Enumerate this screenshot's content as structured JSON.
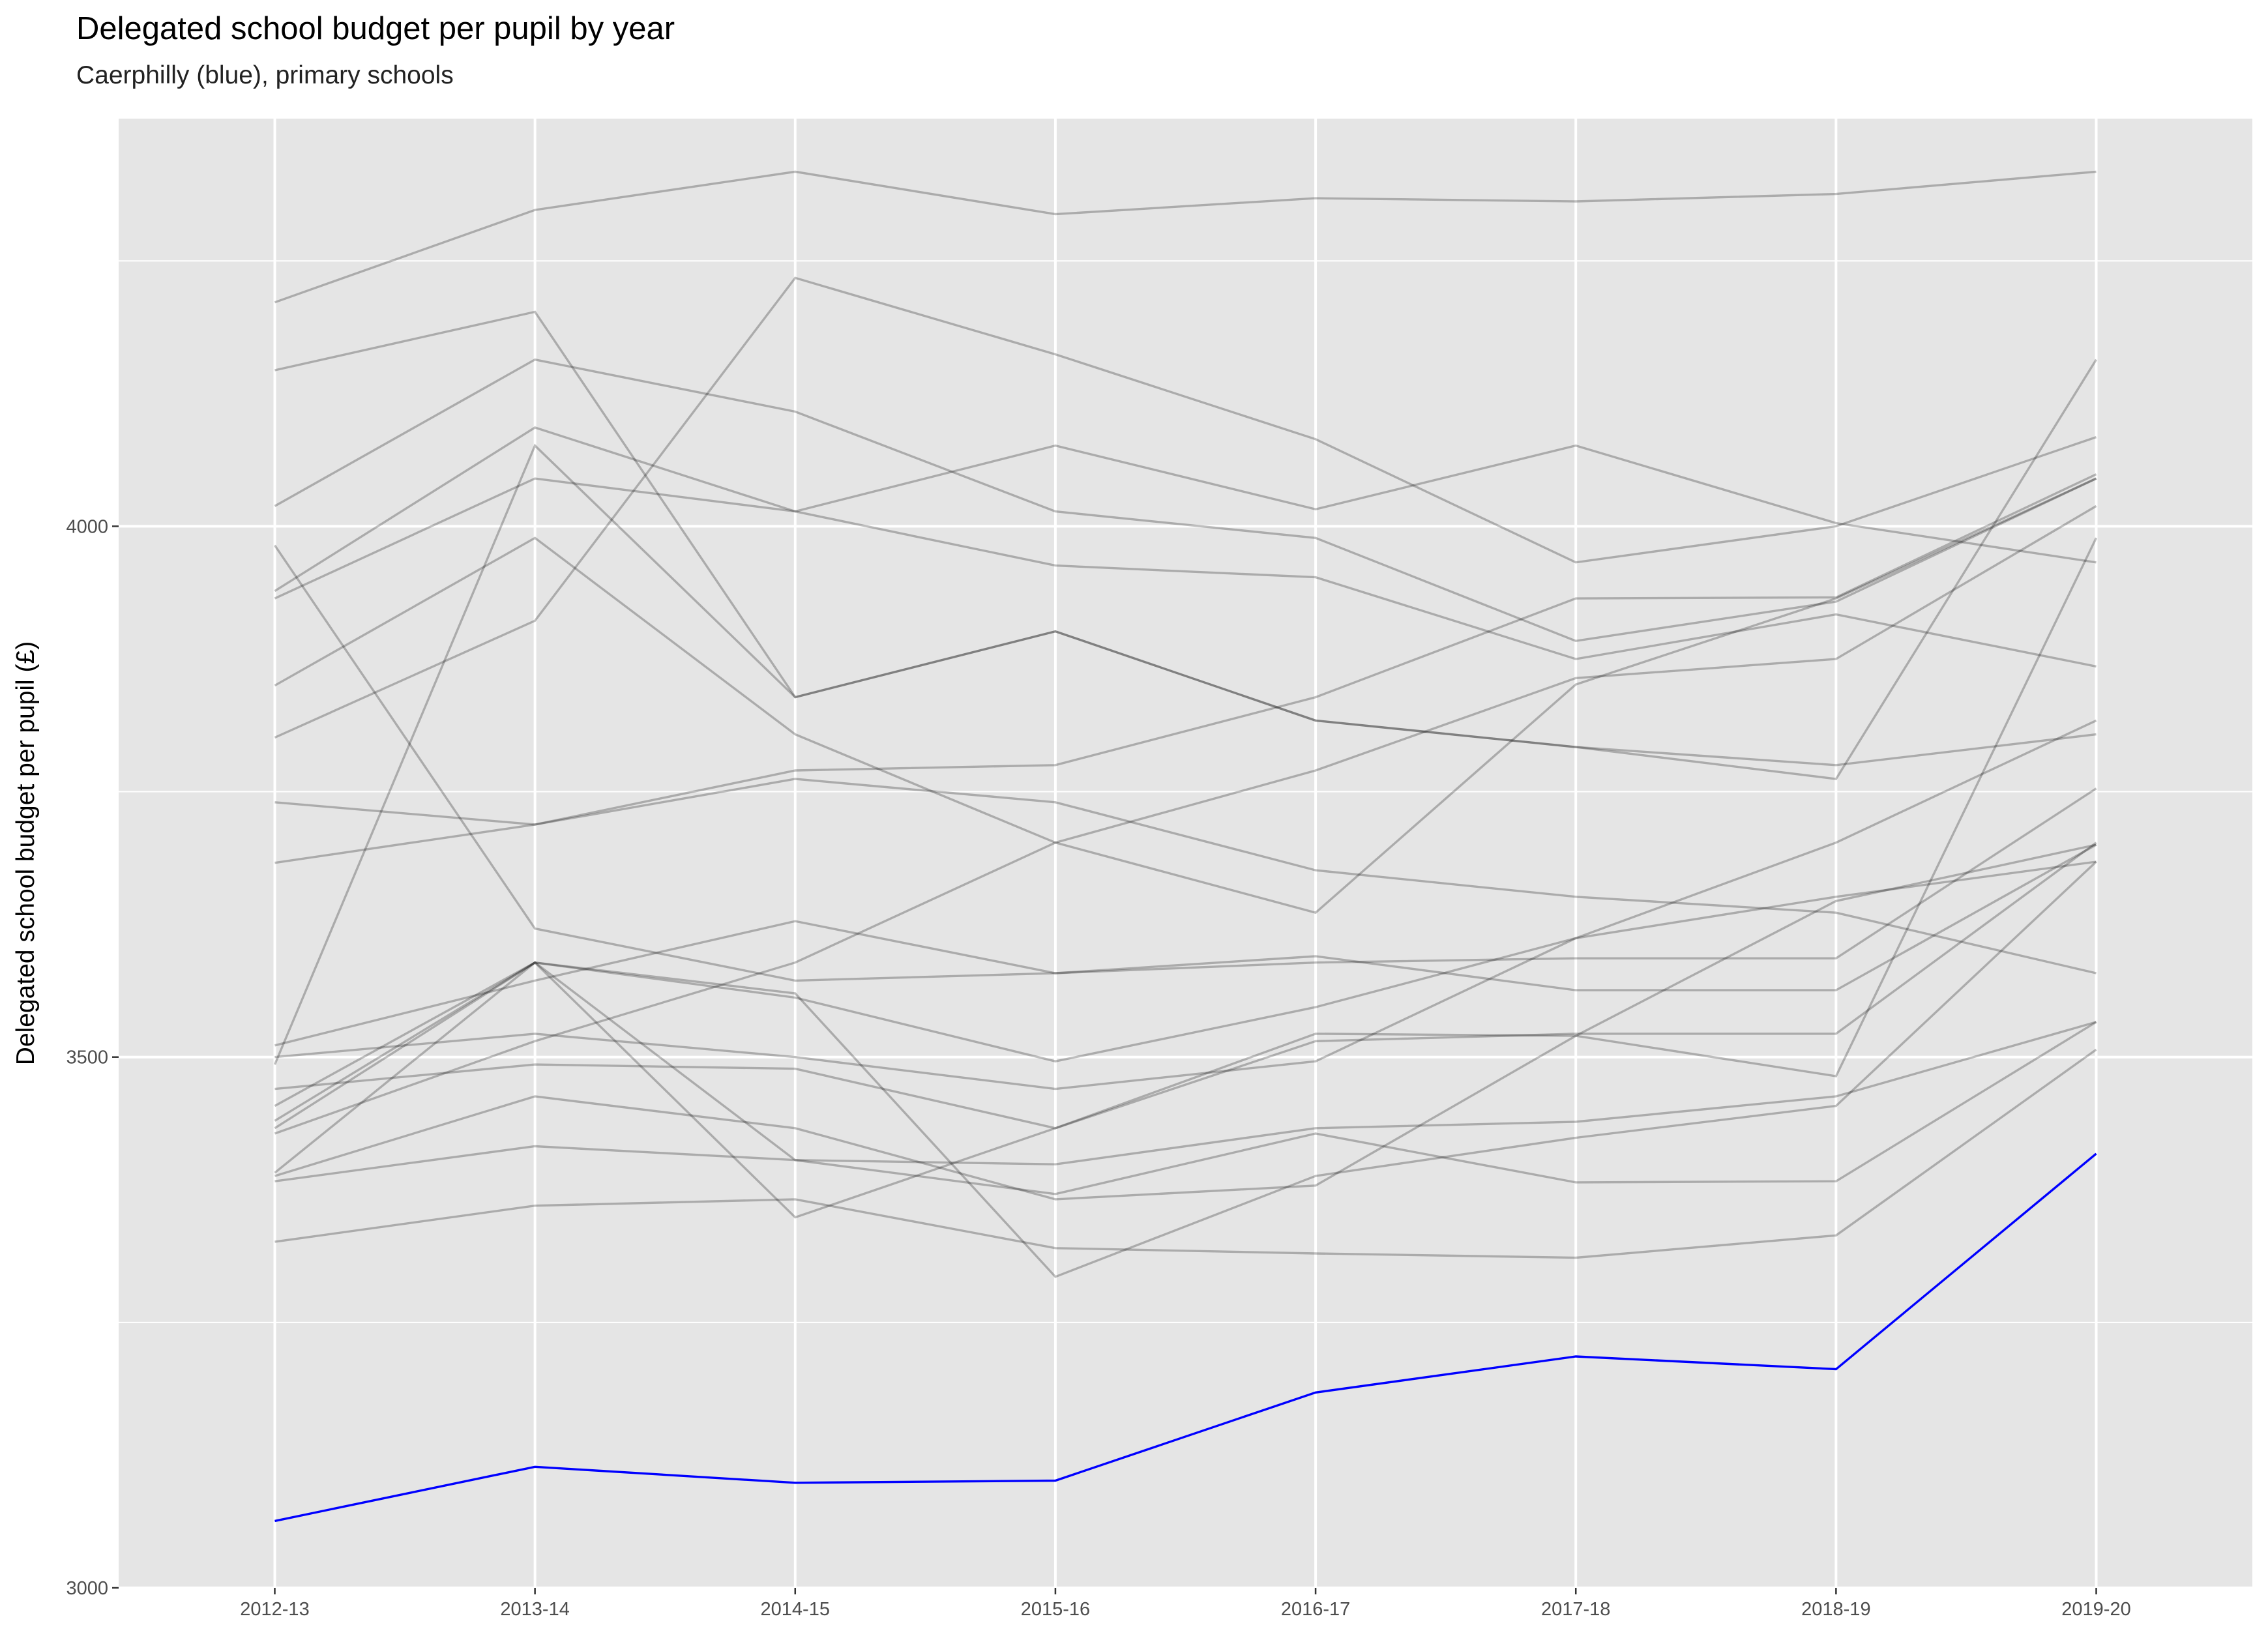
{
  "chart_data": {
    "type": "line",
    "title": "Delegated school budget per pupil by year",
    "subtitle": "Caerphilly (blue), primary schools",
    "xlabel": "",
    "ylabel": "Delegated school budget per pupil (£)",
    "categories": [
      "2012-13",
      "2013-14",
      "2014-15",
      "2015-16",
      "2016-17",
      "2017-18",
      "2018-19",
      "2019-20"
    ],
    "ylim": [
      3000,
      4384
    ],
    "yticks": [
      3000,
      3500,
      4000
    ],
    "grid": true,
    "colors": {
      "highlight": "#0000ff",
      "others": "#a6a6a6",
      "panel": "#e5e5e5",
      "grid": "#ffffff"
    },
    "highlight": {
      "name": "Caerphilly",
      "values": [
        3063,
        3114,
        3099,
        3101,
        3184,
        3218,
        3206,
        3409
      ]
    },
    "others": [
      [
        4211,
        4298,
        4334,
        4294,
        4309,
        4306,
        4313,
        4334
      ],
      [
        4147,
        4202,
        3839,
        3901,
        3817,
        3792,
        3775,
        3804
      ],
      [
        4019,
        4157,
        4108,
        4014,
        3989,
        3892,
        3929,
        4045
      ],
      [
        3939,
        4093,
        4014,
        4076,
        4016,
        4076,
        4003,
        3966
      ],
      [
        3932,
        4045,
        4014,
        3963,
        3952,
        3875,
        3917,
        3868
      ],
      [
        3850,
        3989,
        3804,
        3702,
        3636,
        3851,
        3932,
        4045
      ],
      [
        3801,
        3911,
        4234,
        4162,
        4082,
        3966,
        4000,
        4084
      ],
      [
        3740,
        3719,
        3770,
        3775,
        3839,
        3932,
        3933,
        4049
      ],
      [
        3982,
        3621,
        3572,
        3579,
        3595,
        3563,
        3563,
        3700
      ],
      [
        3683,
        3719,
        3762,
        3740,
        3676,
        3651,
        3636,
        3579
      ],
      [
        3493,
        4076,
        3839,
        3901,
        3817,
        3792,
        3762,
        4157
      ],
      [
        3511,
        3572,
        3628,
        3579,
        3589,
        3593,
        3593,
        3753
      ],
      [
        3500,
        3522,
        3500,
        3470,
        3496,
        3612,
        3702,
        3817
      ],
      [
        3470,
        3493,
        3489,
        3433,
        3515,
        3522,
        3522,
        3702
      ],
      [
        3454,
        3589,
        3556,
        3496,
        3547,
        3612,
        3651,
        3684
      ],
      [
        3433,
        3589,
        3403,
        3371,
        3428,
        3382,
        3383,
        3533
      ],
      [
        3428,
        3515,
        3589,
        3702,
        3770,
        3857,
        3875,
        4019
      ],
      [
        3388,
        3463,
        3433,
        3366,
        3379,
        3520,
        3647,
        3700
      ],
      [
        3383,
        3416,
        3403,
        3399,
        3433,
        3439,
        3463,
        3533
      ],
      [
        3326,
        3360,
        3366,
        3320,
        3315,
        3311,
        3332,
        3507
      ],
      [
        3391,
        3589,
        3349,
        3433,
        3522,
        3520,
        3482,
        3989
      ],
      [
        3440,
        3589,
        3560,
        3293,
        3388,
        3424,
        3454,
        3684
      ]
    ]
  }
}
